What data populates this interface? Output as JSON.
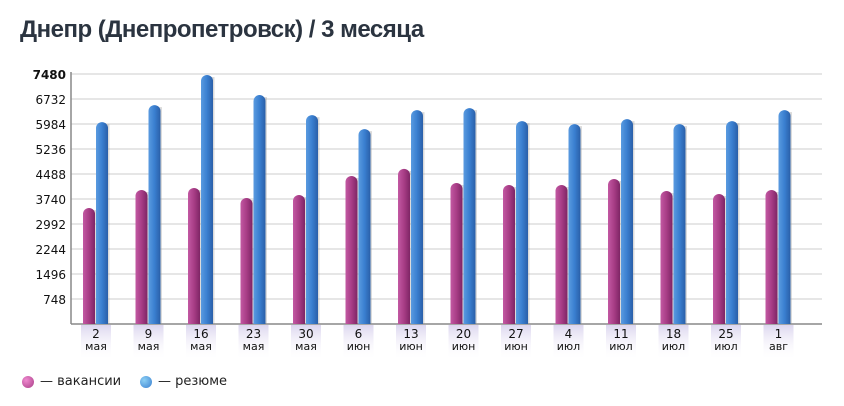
{
  "title": "Днепр (Днепропетровск) / 3 месяца",
  "colors": {
    "vacancies": "#b0408c",
    "resumes": "#3a7fd0"
  },
  "legend": [
    {
      "label": "— вакансии",
      "color": "#b0408c"
    },
    {
      "label": "— резюме",
      "color": "#3a7fd0"
    }
  ],
  "chart_data": {
    "type": "bar",
    "title": "Днепр (Днепропетровск) / 3 месяца",
    "categories": [
      {
        "day": "2",
        "month": "мая"
      },
      {
        "day": "9",
        "month": "мая"
      },
      {
        "day": "16",
        "month": "мая"
      },
      {
        "day": "23",
        "month": "мая"
      },
      {
        "day": "30",
        "month": "мая"
      },
      {
        "day": "6",
        "month": "июн"
      },
      {
        "day": "13",
        "month": "июн"
      },
      {
        "day": "20",
        "month": "июн"
      },
      {
        "day": "27",
        "month": "июн"
      },
      {
        "day": "4",
        "month": "июл"
      },
      {
        "day": "11",
        "month": "июл"
      },
      {
        "day": "18",
        "month": "июл"
      },
      {
        "day": "25",
        "month": "июл"
      },
      {
        "day": "1",
        "month": "авг"
      }
    ],
    "series": [
      {
        "name": "вакансии",
        "values": [
          3470,
          4010,
          4070,
          3770,
          3860,
          4430,
          4640,
          4220,
          4160,
          4160,
          4340,
          3980,
          3890,
          4010
        ]
      },
      {
        "name": "резюме",
        "values": [
          6040,
          6550,
          7450,
          6850,
          6250,
          5830,
          6400,
          6460,
          6070,
          5980,
          6130,
          5980,
          6070,
          6400
        ]
      }
    ],
    "yticks": [
      748,
      1496,
      2244,
      2992,
      3740,
      4488,
      5236,
      5984,
      6732,
      7480
    ],
    "ylim": [
      0,
      7480
    ],
    "grid": true,
    "legend_position": "bottom-left"
  }
}
